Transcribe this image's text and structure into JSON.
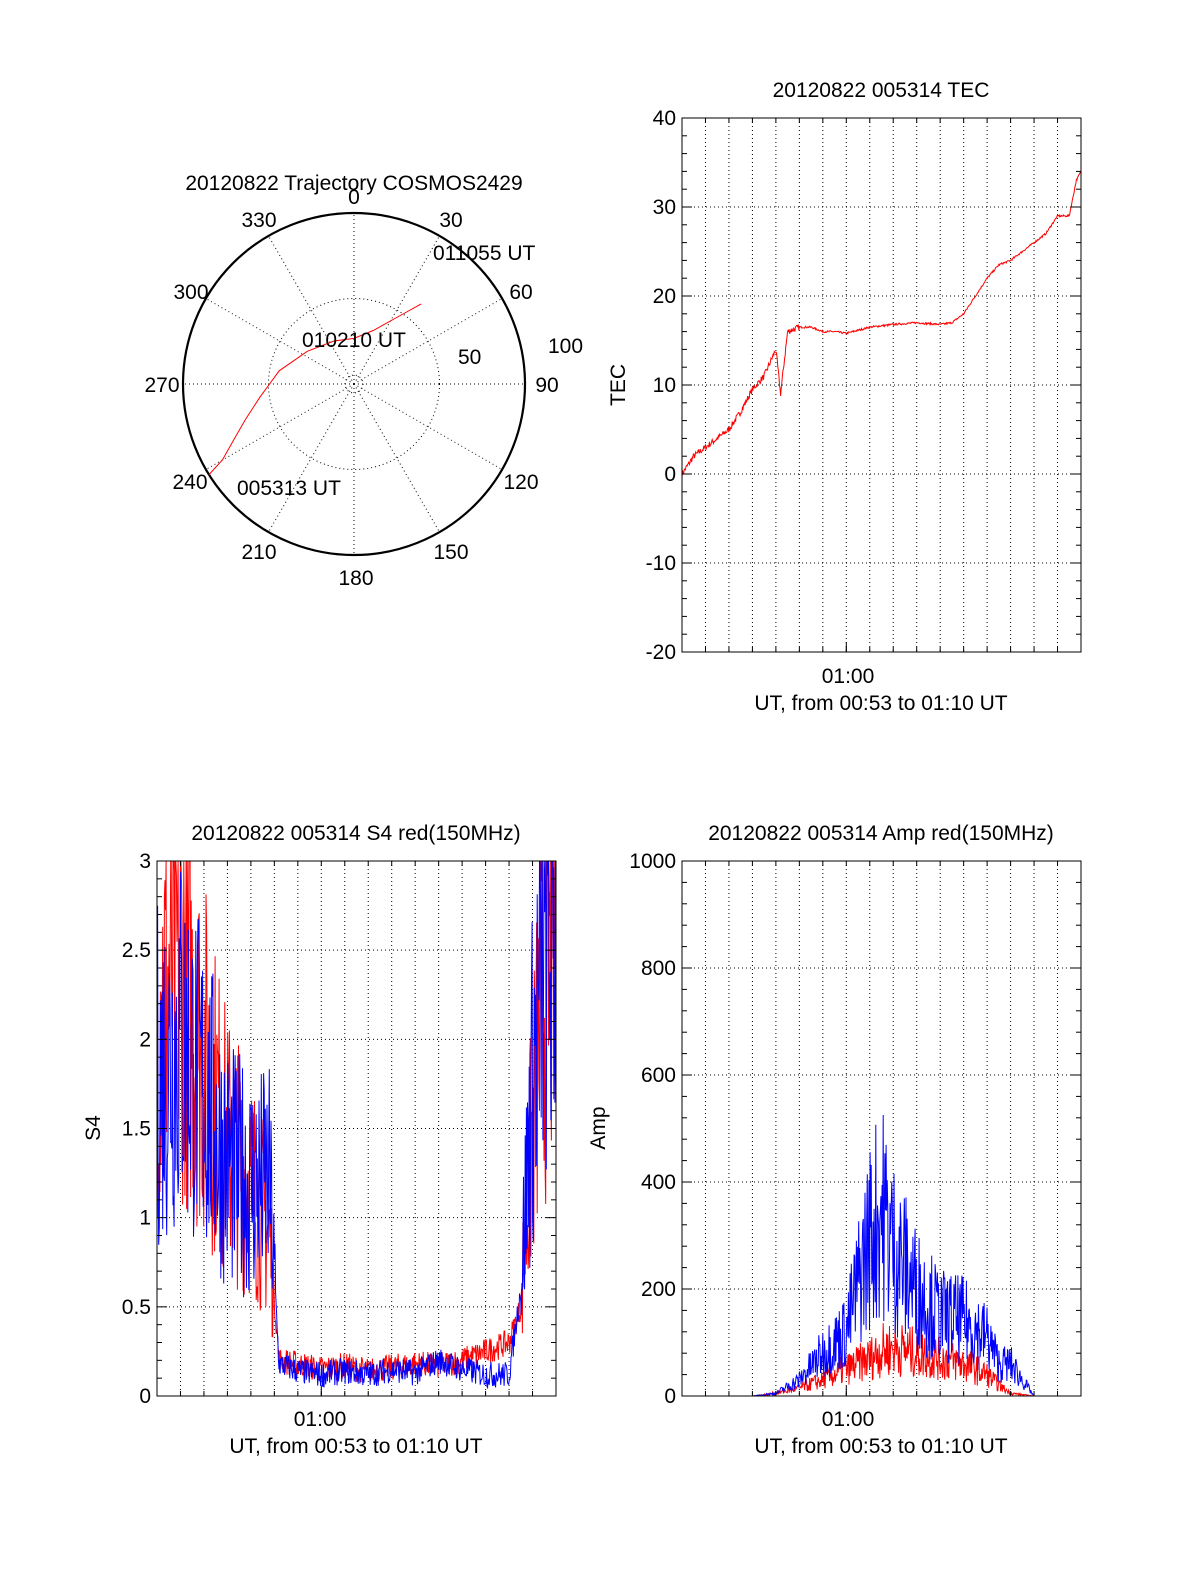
{
  "chart_data": [
    {
      "type": "polar",
      "title": "20120822 Trajectory COSMOS2429",
      "angle_ticks": [
        "0",
        "30",
        "60",
        "90",
        "120",
        "150",
        "180",
        "210",
        "240",
        "270",
        "300",
        "330"
      ],
      "radial_ticks": [
        "50",
        "100"
      ],
      "series": [
        {
          "color": "#ff0000",
          "points": [
            [
              238,
              90
            ],
            [
              240,
              80
            ],
            [
              245,
              70
            ],
            [
              252,
              60
            ],
            [
              262,
              50
            ],
            [
              280,
              40
            ],
            [
              305,
              30
            ],
            [
              335,
              25
            ],
            [
              0,
              24
            ],
            [
              20,
              30
            ],
            [
              35,
              45
            ],
            [
              40,
              55
            ]
          ]
        }
      ],
      "annotations": [
        "011055 UT",
        "010210 UT",
        "005313 UT"
      ]
    },
    {
      "type": "line",
      "title": "20120822 005314 TEC",
      "xlabel": "UT, from 00:53 to 01:10 UT",
      "ylabel": "TEC",
      "xlim": [
        53,
        70
      ],
      "ylim": [
        -20,
        40
      ],
      "x_tick_label": "01:00",
      "y_ticks": [
        "-20",
        "-10",
        "0",
        "10",
        "20",
        "30",
        "40"
      ],
      "grid": true,
      "series": [
        {
          "color": "#ff0000",
          "x": [
            53,
            53.5,
            54,
            54.5,
            55,
            55.5,
            56,
            56.5,
            57,
            57.2,
            57.5,
            58,
            58.5,
            59,
            59.5,
            60,
            61,
            62,
            63,
            64,
            64.5,
            65,
            65.5,
            66,
            66.5,
            67,
            67.5,
            68,
            68.5,
            69,
            69.5,
            69.8,
            70
          ],
          "y": [
            0,
            2,
            3,
            4,
            5,
            7,
            9.5,
            11,
            14,
            9,
            16,
            16.5,
            16.5,
            16,
            16,
            15.8,
            16.5,
            16.8,
            17,
            16.8,
            17,
            18,
            20,
            22,
            23.5,
            24,
            25,
            26,
            27,
            29,
            29,
            33,
            34
          ]
        }
      ]
    },
    {
      "type": "line",
      "title": "20120822 005314 S4 red(150MHz)",
      "xlabel": "UT, from 00:53 to 01:10 UT",
      "ylabel": "S4",
      "xlim": [
        53,
        70
      ],
      "ylim": [
        0,
        3
      ],
      "x_tick_label": "01:00",
      "y_ticks": [
        "0",
        "0.5",
        "1",
        "1.5",
        "2",
        "2.5",
        "3"
      ],
      "grid": true,
      "series": [
        {
          "color": "#ff0000",
          "x": [
            53,
            54,
            55,
            56,
            57,
            57.8,
            58.2,
            59,
            60,
            61,
            62,
            63,
            64,
            65,
            66,
            67,
            68,
            68.5,
            69,
            69.5,
            70
          ],
          "y": [
            2.2,
            2.4,
            1.9,
            1.4,
            1.2,
            0.9,
            0.2,
            0.18,
            0.15,
            0.17,
            0.14,
            0.16,
            0.18,
            0.17,
            0.2,
            0.25,
            0.3,
            0.5,
            1.5,
            2.3,
            2.6
          ]
        },
        {
          "color": "#0000ff",
          "x": [
            53,
            54,
            55,
            56,
            57,
            57.8,
            58.2,
            59,
            60,
            61,
            62,
            63,
            64,
            65,
            66,
            67,
            68,
            68.5,
            69,
            69.5,
            70
          ],
          "y": [
            1.8,
            2.0,
            1.7,
            1.3,
            1.2,
            1.2,
            0.18,
            0.14,
            0.12,
            0.14,
            0.12,
            0.15,
            0.13,
            0.2,
            0.15,
            0.12,
            0.12,
            0.6,
            1.8,
            2.5,
            2.7
          ]
        }
      ]
    },
    {
      "type": "line",
      "title": "20120822 005314 Amp red(150MHz)",
      "xlabel": "UT, from 00:53 to 01:10 UT",
      "ylabel": "Amp",
      "xlim": [
        53,
        70
      ],
      "ylim": [
        0,
        1000
      ],
      "x_tick_label": "01:00",
      "y_ticks": [
        "0",
        "200",
        "400",
        "600",
        "800",
        "1000"
      ],
      "grid": true,
      "series": [
        {
          "color": "#ff0000",
          "x": [
            53,
            56,
            57,
            58,
            59,
            60,
            61,
            61.5,
            62,
            63,
            64,
            65,
            66,
            66.5,
            67,
            68,
            70
          ],
          "y": [
            0,
            0,
            5,
            15,
            30,
            50,
            70,
            85,
            90,
            80,
            70,
            60,
            40,
            20,
            5,
            0,
            0
          ]
        },
        {
          "color": "#0000ff",
          "x": [
            53,
            56,
            57,
            58,
            59,
            60,
            61,
            61.5,
            62,
            63,
            64,
            65,
            66,
            66.5,
            67,
            68,
            70
          ],
          "y": [
            0,
            0,
            5,
            30,
            80,
            120,
            300,
            350,
            280,
            200,
            150,
            140,
            110,
            60,
            60,
            0,
            0
          ]
        }
      ]
    }
  ]
}
